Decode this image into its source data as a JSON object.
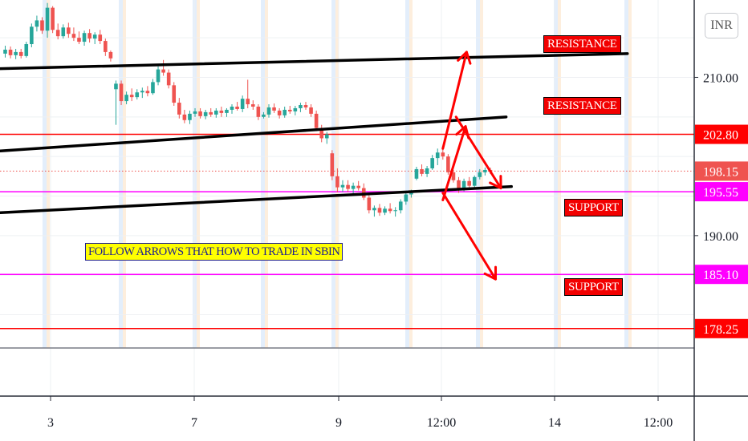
{
  "currency_label": "INR",
  "annotations": {
    "resistance_upper": "RESISTANCE",
    "resistance_lower": "RESISTANCE",
    "support_upper": "SUPPORT",
    "support_lower": "SUPPORT",
    "instruction": "FOLLOW ARROWS THAT HOW TO TRADE IN SBIN"
  },
  "colors": {
    "up": "#26a69a",
    "down": "#ef5350",
    "level_red": "#ff0000",
    "level_magenta": "#ff00ff",
    "current_price": "#ef5350",
    "trendline": "#000000",
    "arrow": "#ff0000",
    "session_blue": "#e3eefb",
    "session_orange": "#fdeedd"
  },
  "chart_data": {
    "type": "candlestick",
    "symbol": "SBIN",
    "ylim": [
      176,
      218
    ],
    "y_ticks": [
      "210.00",
      "190.00"
    ],
    "x_tick_labels": [
      "3",
      "7",
      "9",
      "12:00",
      "14",
      "12:00"
    ],
    "price_levels": [
      {
        "price": 202.8,
        "label": "202.80",
        "color": "red"
      },
      {
        "price": 198.15,
        "label": "198.15",
        "color": "red",
        "style": "dotted",
        "current": true
      },
      {
        "price": 195.55,
        "label": "195.55",
        "color": "magenta"
      },
      {
        "price": 185.1,
        "label": "185.10",
        "color": "magenta"
      },
      {
        "price": 178.25,
        "label": "178.25",
        "color": "red"
      }
    ],
    "trendlines": [
      {
        "name": "upper",
        "from": [
          0,
          211.1
        ],
        "to": [
          118,
          213.0
        ]
      },
      {
        "name": "middle",
        "from": [
          0,
          200.7
        ],
        "to": [
          95,
          205.0
        ]
      },
      {
        "name": "lower",
        "from": [
          0,
          192.9
        ],
        "to": [
          96,
          196.2
        ]
      }
    ],
    "arrows": [
      {
        "from": [
          83,
          201.0
        ],
        "to": [
          87.5,
          213.2
        ]
      },
      {
        "from": [
          83,
          194.5
        ],
        "to": [
          87.3,
          203.8
        ]
      },
      {
        "from": [
          85.5,
          205.0
        ],
        "to": [
          94,
          196.0
        ]
      },
      {
        "from": [
          83,
          195.4
        ],
        "to": [
          93,
          184.5
        ]
      }
    ],
    "candles": [
      [
        213,
        214.0,
        212.5,
        213.5
      ],
      [
        213.5,
        213.9,
        212.4,
        212.8
      ],
      [
        212.8,
        213.6,
        212.3,
        213.2
      ],
      [
        213.2,
        213.6,
        212.4,
        212.7
      ],
      [
        212.7,
        214.5,
        212.5,
        214.2
      ],
      [
        214.2,
        216.8,
        213.8,
        216.4
      ],
      [
        216.4,
        217.8,
        215.8,
        217.2
      ],
      [
        217.2,
        217.6,
        215.5,
        215.9
      ],
      [
        215.9,
        219.4,
        215.0,
        218.8
      ],
      [
        218.8,
        219.0,
        215.6,
        216.0
      ],
      [
        216.0,
        216.8,
        214.8,
        215.2
      ],
      [
        215.2,
        216.7,
        214.9,
        216.3
      ],
      [
        216.3,
        216.9,
        215.0,
        215.5
      ],
      [
        215.5,
        216.3,
        214.6,
        215.0
      ],
      [
        215.0,
        215.8,
        214.2,
        214.5
      ],
      [
        214.5,
        215.9,
        214.0,
        215.6
      ],
      [
        215.6,
        216.1,
        214.4,
        214.9
      ],
      [
        214.9,
        215.7,
        214.2,
        215.4
      ],
      [
        215.4,
        216.0,
        214.2,
        214.6
      ],
      [
        214.6,
        214.9,
        212.7,
        213.2
      ],
      [
        213.2,
        213.4,
        212.0,
        212.4
      ],
      [
        208.5,
        209.6,
        204.0,
        209.2
      ],
      [
        209.2,
        209.6,
        206.5,
        207.0
      ],
      [
        207.0,
        208.2,
        206.6,
        207.8
      ],
      [
        207.8,
        208.6,
        207.0,
        207.5
      ],
      [
        207.5,
        208.5,
        207.2,
        208.1
      ],
      [
        208.1,
        208.7,
        207.4,
        208.3
      ],
      [
        208.3,
        208.9,
        207.6,
        208.0
      ],
      [
        208.0,
        209.8,
        207.8,
        209.4
      ],
      [
        209.4,
        211.4,
        209.0,
        211.0
      ],
      [
        211.0,
        212.2,
        210.2,
        210.6
      ],
      [
        210.6,
        211.0,
        208.6,
        209.0
      ],
      [
        209.0,
        209.4,
        206.4,
        206.8
      ],
      [
        206.8,
        207.4,
        204.8,
        205.3
      ],
      [
        205.3,
        205.9,
        204.2,
        204.6
      ],
      [
        204.6,
        205.8,
        204.1,
        205.4
      ],
      [
        205.4,
        206.1,
        205.0,
        205.7
      ],
      [
        205.7,
        206.1,
        204.8,
        205.1
      ],
      [
        205.1,
        205.9,
        204.7,
        205.6
      ],
      [
        205.6,
        206.1,
        205.0,
        205.3
      ],
      [
        205.3,
        206.1,
        204.9,
        205.8
      ],
      [
        205.8,
        206.3,
        205.0,
        205.5
      ],
      [
        205.5,
        206.1,
        205.0,
        205.9
      ],
      [
        205.9,
        206.6,
        205.4,
        206.3
      ],
      [
        206.3,
        206.9,
        205.8,
        206.0
      ],
      [
        206.0,
        207.7,
        205.6,
        207.3
      ],
      [
        207.3,
        209.7,
        206.1,
        206.6
      ],
      [
        206.6,
        207.1,
        205.9,
        206.3
      ],
      [
        206.3,
        206.6,
        204.6,
        205.0
      ],
      [
        205.0,
        205.6,
        204.8,
        205.3
      ],
      [
        205.3,
        206.6,
        204.9,
        206.2
      ],
      [
        206.2,
        206.7,
        205.5,
        205.8
      ],
      [
        205.8,
        206.1,
        204.8,
        205.2
      ],
      [
        205.2,
        206.3,
        204.9,
        205.9
      ],
      [
        205.9,
        206.4,
        205.4,
        205.7
      ],
      [
        205.7,
        206.4,
        205.2,
        206.1
      ],
      [
        206.1,
        206.8,
        205.6,
        206.5
      ],
      [
        206.5,
        206.9,
        205.9,
        206.2
      ],
      [
        206.2,
        206.6,
        205.0,
        205.4
      ],
      [
        205.4,
        205.8,
        203.2,
        203.6
      ],
      [
        203.6,
        204.0,
        201.8,
        202.3
      ],
      [
        202.3,
        203.1,
        201.6,
        202.8
      ],
      [
        200.4,
        200.8,
        197.0,
        197.5
      ],
      [
        197.5,
        198.5,
        195.5,
        196.1
      ],
      [
        196.1,
        197.0,
        195.5,
        196.4
      ],
      [
        196.4,
        197.0,
        195.5,
        195.9
      ],
      [
        195.9,
        196.7,
        195.2,
        196.3
      ],
      [
        196.3,
        196.9,
        195.7,
        196.0
      ],
      [
        196.0,
        196.6,
        194.5,
        194.8
      ],
      [
        194.8,
        195.1,
        192.8,
        193.2
      ],
      [
        193.2,
        193.8,
        192.4,
        193.5
      ],
      [
        193.5,
        194.0,
        192.5,
        192.9
      ],
      [
        192.9,
        193.7,
        192.6,
        193.4
      ],
      [
        193.4,
        194.1,
        192.8,
        193.1
      ],
      [
        193.1,
        193.6,
        192.4,
        193.2
      ],
      [
        193.2,
        194.6,
        192.8,
        194.3
      ],
      [
        194.3,
        195.6,
        193.9,
        195.2
      ],
      [
        195.2,
        195.8,
        194.8,
        195.4
      ],
      [
        197.2,
        198.7,
        197.0,
        198.4
      ],
      [
        198.4,
        199.0,
        197.5,
        197.8
      ],
      [
        197.8,
        198.8,
        197.4,
        198.5
      ],
      [
        198.5,
        200.2,
        198.3,
        199.8
      ],
      [
        199.8,
        201.0,
        198.9,
        200.5
      ],
      [
        200.5,
        200.9,
        199.6,
        200.0
      ],
      [
        200.0,
        200.3,
        197.7,
        198.0
      ],
      [
        198.0,
        198.3,
        196.7,
        197.0
      ],
      [
        197.0,
        197.4,
        195.4,
        195.8
      ],
      [
        195.8,
        197.2,
        195.6,
        196.9
      ],
      [
        196.9,
        197.4,
        196.0,
        196.3
      ],
      [
        196.3,
        197.6,
        196.0,
        197.4
      ],
      [
        197.4,
        198.4,
        197.1,
        198.0
      ],
      [
        198.0,
        198.6,
        197.6,
        198.3
      ],
      [
        198.3,
        198.6,
        197.8,
        198.15
      ]
    ]
  }
}
